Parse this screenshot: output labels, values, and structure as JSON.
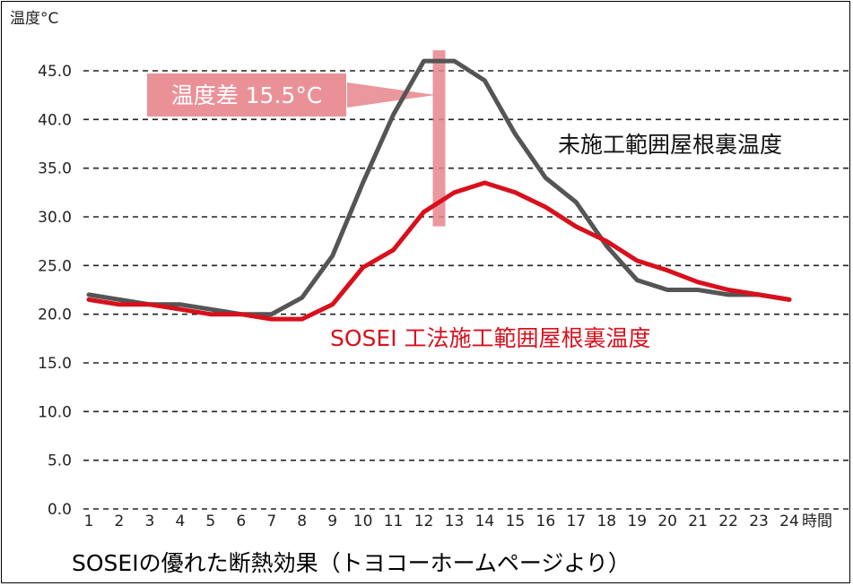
{
  "chart_data": {
    "type": "line",
    "ylabel": "温度°C",
    "xunit": "時間",
    "ylim": [
      0,
      45
    ],
    "ytick_labels": [
      "0.0",
      "5.0",
      "10.0",
      "15.0",
      "20.0",
      "25.0",
      "30.0",
      "35.0",
      "40.0",
      "45.0"
    ],
    "x": [
      1,
      2,
      3,
      4,
      5,
      6,
      7,
      8,
      9,
      10,
      11,
      12,
      13,
      14,
      15,
      16,
      17,
      18,
      19,
      20,
      21,
      22,
      23,
      24
    ],
    "grid": "horizontal-dashed",
    "series": [
      {
        "name": "未施工範囲屋根裏温度",
        "color": "#555555",
        "values": [
          22.0,
          21.5,
          21.0,
          21.0,
          20.5,
          20.0,
          20.0,
          21.7,
          26.0,
          33.5,
          40.5,
          46.0,
          46.0,
          44.0,
          38.5,
          34.0,
          31.5,
          27.0,
          23.5,
          22.5,
          22.5,
          22.0,
          22.0,
          21.5
        ]
      },
      {
        "name": "SOSEI 工法施工範囲屋根裏温度",
        "color": "#d8101c",
        "values": [
          21.5,
          21.0,
          21.0,
          20.5,
          20.0,
          20.0,
          19.5,
          19.5,
          21.0,
          24.8,
          26.6,
          30.5,
          32.5,
          33.5,
          32.5,
          31.0,
          29.0,
          27.5,
          25.5,
          24.5,
          23.3,
          22.5,
          22.0,
          21.5
        ]
      }
    ],
    "annotation": {
      "text": "温度差 15.5°C",
      "x": 12.5,
      "y_range": [
        30.5,
        46.0
      ],
      "color": "#e8858d"
    }
  },
  "caption": "SOSEIの優れた断熱効果（トヨコーホームページより）"
}
